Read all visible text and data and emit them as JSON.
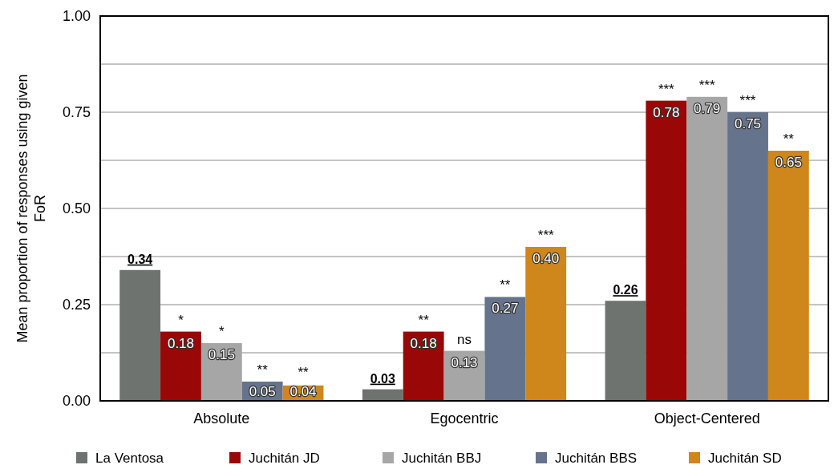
{
  "chart_data": {
    "type": "bar",
    "ylabel": "Mean proportion of responses using given FoR",
    "categories": [
      "Absolute",
      "Egocentric",
      "Object-Centered"
    ],
    "series": [
      {
        "name": "La Ventosa",
        "color": "#6e7370",
        "values": [
          0.34,
          0.03,
          0.26
        ],
        "value_labels": [
          "0.34",
          "0.03",
          "0.26"
        ]
      },
      {
        "name": "Juchitán JD",
        "color": "#990707",
        "values": [
          0.18,
          0.18,
          0.78
        ],
        "value_labels": [
          "0.18",
          "0.18",
          "0.78"
        ]
      },
      {
        "name": "Juchitán BBJ",
        "color": "#a6a6a6",
        "values": [
          0.15,
          0.13,
          0.79
        ],
        "value_labels": [
          "0.15",
          "0.13",
          "0.79"
        ]
      },
      {
        "name": "Juchitán BBS",
        "color": "#66738c",
        "values": [
          0.05,
          0.27,
          0.75
        ],
        "value_labels": [
          "0.05",
          "0.27",
          "0.75"
        ]
      },
      {
        "name": "Juchitán SD",
        "color": "#cf861b",
        "values": [
          0.04,
          0.4,
          0.65
        ],
        "value_labels": [
          "0.04",
          "0.40",
          "0.65"
        ]
      }
    ],
    "ylim": [
      0,
      1
    ],
    "yticks": [
      {
        "value": 0,
        "label": "0.00"
      },
      {
        "value": 0.125,
        "label": null
      },
      {
        "value": 0.25,
        "label": "0.25"
      },
      {
        "value": 0.375,
        "label": null
      },
      {
        "value": 0.5,
        "label": "0.50"
      },
      {
        "value": 0.625,
        "label": null
      },
      {
        "value": 0.75,
        "label": "0.75"
      },
      {
        "value": 0.875,
        "label": null
      },
      {
        "value": 1,
        "label": "1.00"
      }
    ],
    "grid": true,
    "legend": "bottom",
    "annotations": [
      "*",
      "*",
      "**",
      "**",
      "**",
      "ns",
      "**",
      "***",
      "***",
      "***",
      "***",
      "**"
    ]
  }
}
